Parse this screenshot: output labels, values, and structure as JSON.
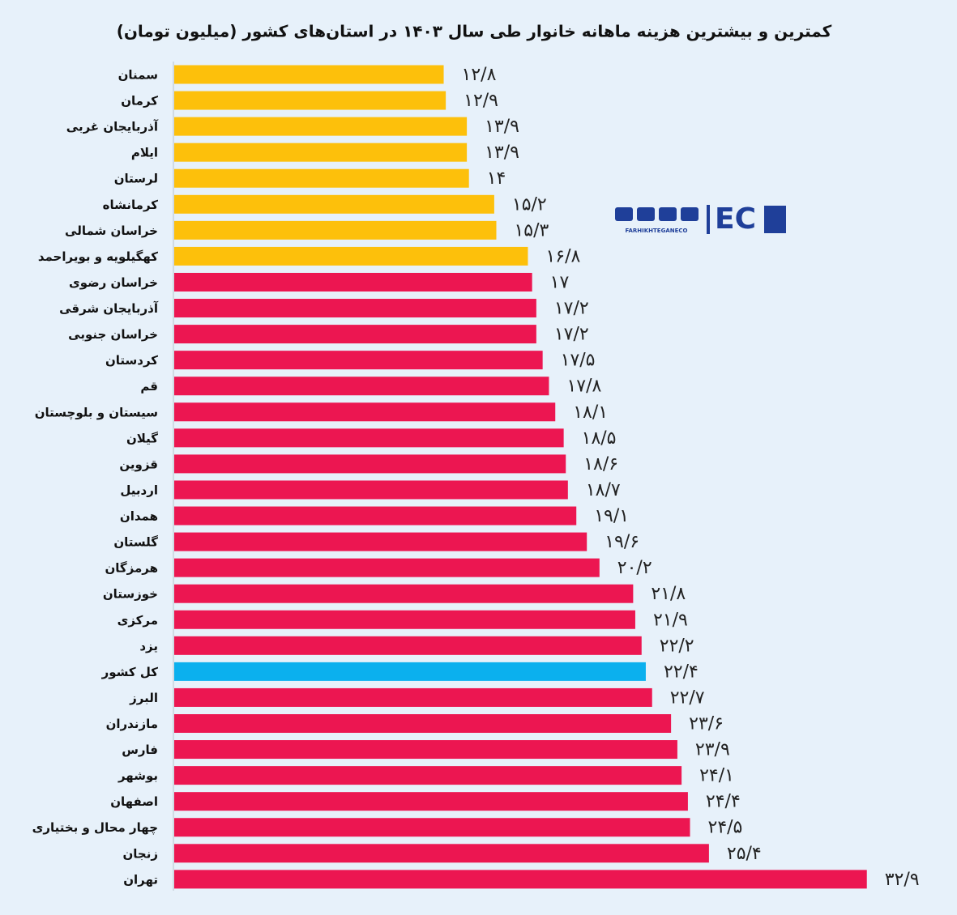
{
  "chart_data": {
    "type": "bar",
    "orientation": "horizontal",
    "title": "کمترین و بیشترین هزینه ماهانه خانوار طی سال ۱۴۰۳ در استان‌های کشور (میلیون تومان)",
    "categories": [
      "سمنان",
      "کرمان",
      "آذربایجان غربی",
      "ایلام",
      "لرستان",
      "کرمانشاه",
      "خراسان شمالی",
      "کهگیلویه و بویراحمد",
      "خراسان رضوی",
      "آذربایجان شرقی",
      "خراسان جنوبی",
      "کردستان",
      "قم",
      "سیستان و بلوچستان",
      "گیلان",
      "قزوین",
      "اردبیل",
      "همدان",
      "گلستان",
      "هرمزگان",
      "خوزستان",
      "مرکزی",
      "یزد",
      "کل کشور",
      "البرز",
      "مازندران",
      "فارس",
      "بوشهر",
      "اصفهان",
      "چهار محال و بختیاری",
      "زنجان",
      "تهران"
    ],
    "values": [
      12.8,
      12.9,
      13.9,
      13.9,
      14,
      15.2,
      15.3,
      16.8,
      17,
      17.2,
      17.2,
      17.5,
      17.8,
      18.1,
      18.5,
      18.6,
      18.7,
      19.1,
      19.6,
      20.2,
      21.8,
      21.9,
      22.2,
      22.4,
      22.7,
      23.6,
      23.9,
      24.1,
      24.4,
      24.5,
      25.4,
      32.9
    ],
    "value_labels": [
      "۱۲/۸",
      "۱۲/۹",
      "۱۳/۹",
      "۱۳/۹",
      "۱۴",
      "۱۵/۲",
      "۱۵/۳",
      "۱۶/۸",
      "۱۷",
      "۱۷/۲",
      "۱۷/۲",
      "۱۷/۵",
      "۱۷/۸",
      "۱۸/۱",
      "۱۸/۵",
      "۱۸/۶",
      "۱۸/۷",
      "۱۹/۱",
      "۱۹/۶",
      "۲۰/۲",
      "۲۱/۸",
      "۲۱/۹",
      "۲۲/۲",
      "۲۲/۴",
      "۲۲/۷",
      "۲۳/۶",
      "۲۳/۹",
      "۲۴/۱",
      "۲۴/۴",
      "۲۴/۵",
      "۲۵/۴",
      "۳۲/۹"
    ],
    "colors": [
      "#fdc00b",
      "#fdc00b",
      "#fdc00b",
      "#fdc00b",
      "#fdc00b",
      "#fdc00b",
      "#fdc00b",
      "#fdc00b",
      "#ec1651",
      "#ec1651",
      "#ec1651",
      "#ec1651",
      "#ec1651",
      "#ec1651",
      "#ec1651",
      "#ec1651",
      "#ec1651",
      "#ec1651",
      "#ec1651",
      "#ec1651",
      "#ec1651",
      "#ec1651",
      "#ec1651",
      "#0bb0ee",
      "#ec1651",
      "#ec1651",
      "#ec1651",
      "#ec1651",
      "#ec1651",
      "#ec1651",
      "#ec1651",
      "#ec1651"
    ]
  },
  "logo": {
    "mark": "EC",
    "handle": "FARHIKHTEGANECO"
  }
}
